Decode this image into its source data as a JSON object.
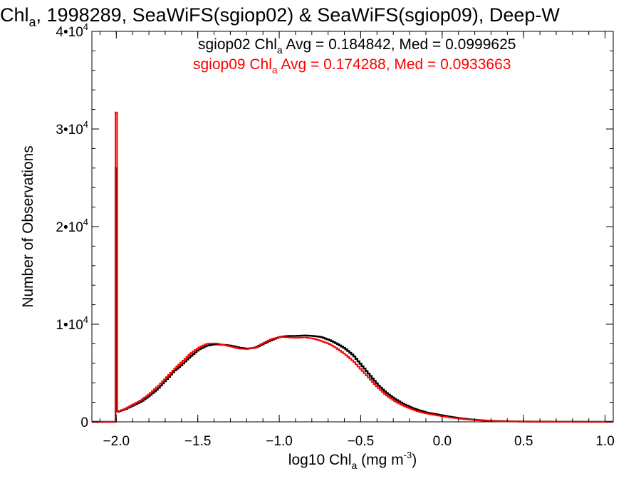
{
  "title": {
    "prefix": "Chl",
    "sub": "a",
    "rest": ", 1998289, SeaWiFS(sgiop02) & SeaWiFS(sgiop09), Deep-W"
  },
  "legend": [
    {
      "label_prefix": "sgiop02 Chl",
      "label_sub": "a",
      "label_rest": " Avg = 0.184842, Med = 0.0999625",
      "color": "#000000"
    },
    {
      "label_prefix": "sgiop09 Chl",
      "label_sub": "a",
      "label_rest": " Avg = 0.174288, Med = 0.0933663",
      "color": "#ff0000"
    }
  ],
  "axes": {
    "xlabel_prefix": "log10 Chl",
    "xlabel_sub": "a",
    "xlabel_rest": " (mg m",
    "xlabel_sup": "-3",
    "xlabel_end": ")",
    "ylabel": "Number of Observations"
  },
  "chart_data": {
    "type": "line",
    "step": true,
    "xlim": [
      -2.15,
      1.05
    ],
    "ylim": [
      0,
      40000
    ],
    "x_ticks": [
      {
        "v": -2.0,
        "label": "−2.0"
      },
      {
        "v": -1.5,
        "label": "−1.5"
      },
      {
        "v": -1.0,
        "label": "−1.0"
      },
      {
        "v": -0.5,
        "label": "−0.5"
      },
      {
        "v": 0.0,
        "label": "0.0"
      },
      {
        "v": 0.5,
        "label": "0.5"
      },
      {
        "v": 1.0,
        "label": "1.0"
      }
    ],
    "y_ticks": [
      {
        "v": 0,
        "mant": "0",
        "exp": ""
      },
      {
        "v": 10000,
        "mant": "1•10",
        "exp": "4"
      },
      {
        "v": 20000,
        "mant": "2•10",
        "exp": "4"
      },
      {
        "v": 30000,
        "mant": "3•10",
        "exp": "4"
      },
      {
        "v": 40000,
        "mant": "4•10",
        "exp": "4"
      }
    ],
    "series": [
      {
        "name": "sgiop02",
        "color": "#000000",
        "spike": {
          "x": -2.0,
          "y": 26000
        },
        "points": [
          [
            -2.0,
            1000
          ],
          [
            -1.95,
            1300
          ],
          [
            -1.9,
            1700
          ],
          [
            -1.85,
            2100
          ],
          [
            -1.8,
            2700
          ],
          [
            -1.75,
            3400
          ],
          [
            -1.7,
            4300
          ],
          [
            -1.65,
            5200
          ],
          [
            -1.6,
            5900
          ],
          [
            -1.55,
            6700
          ],
          [
            -1.5,
            7400
          ],
          [
            -1.45,
            7800
          ],
          [
            -1.4,
            7950
          ],
          [
            -1.35,
            7900
          ],
          [
            -1.3,
            7800
          ],
          [
            -1.25,
            7600
          ],
          [
            -1.2,
            7500
          ],
          [
            -1.15,
            7600
          ],
          [
            -1.1,
            8000
          ],
          [
            -1.05,
            8400
          ],
          [
            -1.0,
            8700
          ],
          [
            -0.95,
            8800
          ],
          [
            -0.9,
            8800
          ],
          [
            -0.85,
            8850
          ],
          [
            -0.8,
            8800
          ],
          [
            -0.75,
            8700
          ],
          [
            -0.7,
            8400
          ],
          [
            -0.65,
            8000
          ],
          [
            -0.6,
            7500
          ],
          [
            -0.55,
            6800
          ],
          [
            -0.5,
            5800
          ],
          [
            -0.45,
            4800
          ],
          [
            -0.4,
            3800
          ],
          [
            -0.35,
            3000
          ],
          [
            -0.3,
            2400
          ],
          [
            -0.25,
            1900
          ],
          [
            -0.2,
            1500
          ],
          [
            -0.15,
            1200
          ],
          [
            -0.1,
            950
          ],
          [
            -0.05,
            800
          ],
          [
            0.0,
            650
          ],
          [
            0.05,
            500
          ],
          [
            0.1,
            380
          ],
          [
            0.15,
            280
          ],
          [
            0.2,
            200
          ],
          [
            0.25,
            140
          ],
          [
            0.3,
            100
          ],
          [
            0.35,
            70
          ],
          [
            0.4,
            50
          ],
          [
            0.5,
            30
          ],
          [
            0.6,
            20
          ],
          [
            0.8,
            10
          ],
          [
            1.0,
            5
          ],
          [
            1.05,
            5
          ]
        ]
      },
      {
        "name": "sgiop09",
        "color": "#ff0000",
        "spike": {
          "x": -2.0,
          "y": 31700
        },
        "points": [
          [
            -2.0,
            1000
          ],
          [
            -1.95,
            1350
          ],
          [
            -1.9,
            1800
          ],
          [
            -1.85,
            2250
          ],
          [
            -1.8,
            2900
          ],
          [
            -1.75,
            3650
          ],
          [
            -1.7,
            4500
          ],
          [
            -1.65,
            5400
          ],
          [
            -1.6,
            6200
          ],
          [
            -1.55,
            7000
          ],
          [
            -1.5,
            7600
          ],
          [
            -1.45,
            8000
          ],
          [
            -1.4,
            8050
          ],
          [
            -1.35,
            7900
          ],
          [
            -1.3,
            7700
          ],
          [
            -1.25,
            7500
          ],
          [
            -1.2,
            7450
          ],
          [
            -1.15,
            7650
          ],
          [
            -1.1,
            8100
          ],
          [
            -1.05,
            8500
          ],
          [
            -1.0,
            8700
          ],
          [
            -0.95,
            8650
          ],
          [
            -0.9,
            8600
          ],
          [
            -0.85,
            8650
          ],
          [
            -0.8,
            8550
          ],
          [
            -0.75,
            8300
          ],
          [
            -0.7,
            8000
          ],
          [
            -0.65,
            7500
          ],
          [
            -0.6,
            6900
          ],
          [
            -0.55,
            6200
          ],
          [
            -0.5,
            5300
          ],
          [
            -0.45,
            4400
          ],
          [
            -0.4,
            3500
          ],
          [
            -0.35,
            2750
          ],
          [
            -0.3,
            2150
          ],
          [
            -0.25,
            1700
          ],
          [
            -0.2,
            1350
          ],
          [
            -0.15,
            1050
          ],
          [
            -0.1,
            850
          ],
          [
            -0.05,
            700
          ],
          [
            0.0,
            560
          ],
          [
            0.05,
            430
          ],
          [
            0.1,
            330
          ],
          [
            0.15,
            240
          ],
          [
            0.2,
            170
          ],
          [
            0.25,
            120
          ],
          [
            0.3,
            85
          ],
          [
            0.35,
            60
          ],
          [
            0.4,
            45
          ],
          [
            0.5,
            25
          ],
          [
            0.6,
            15
          ],
          [
            0.8,
            8
          ],
          [
            1.0,
            4
          ],
          [
            1.05,
            4
          ]
        ]
      }
    ]
  }
}
